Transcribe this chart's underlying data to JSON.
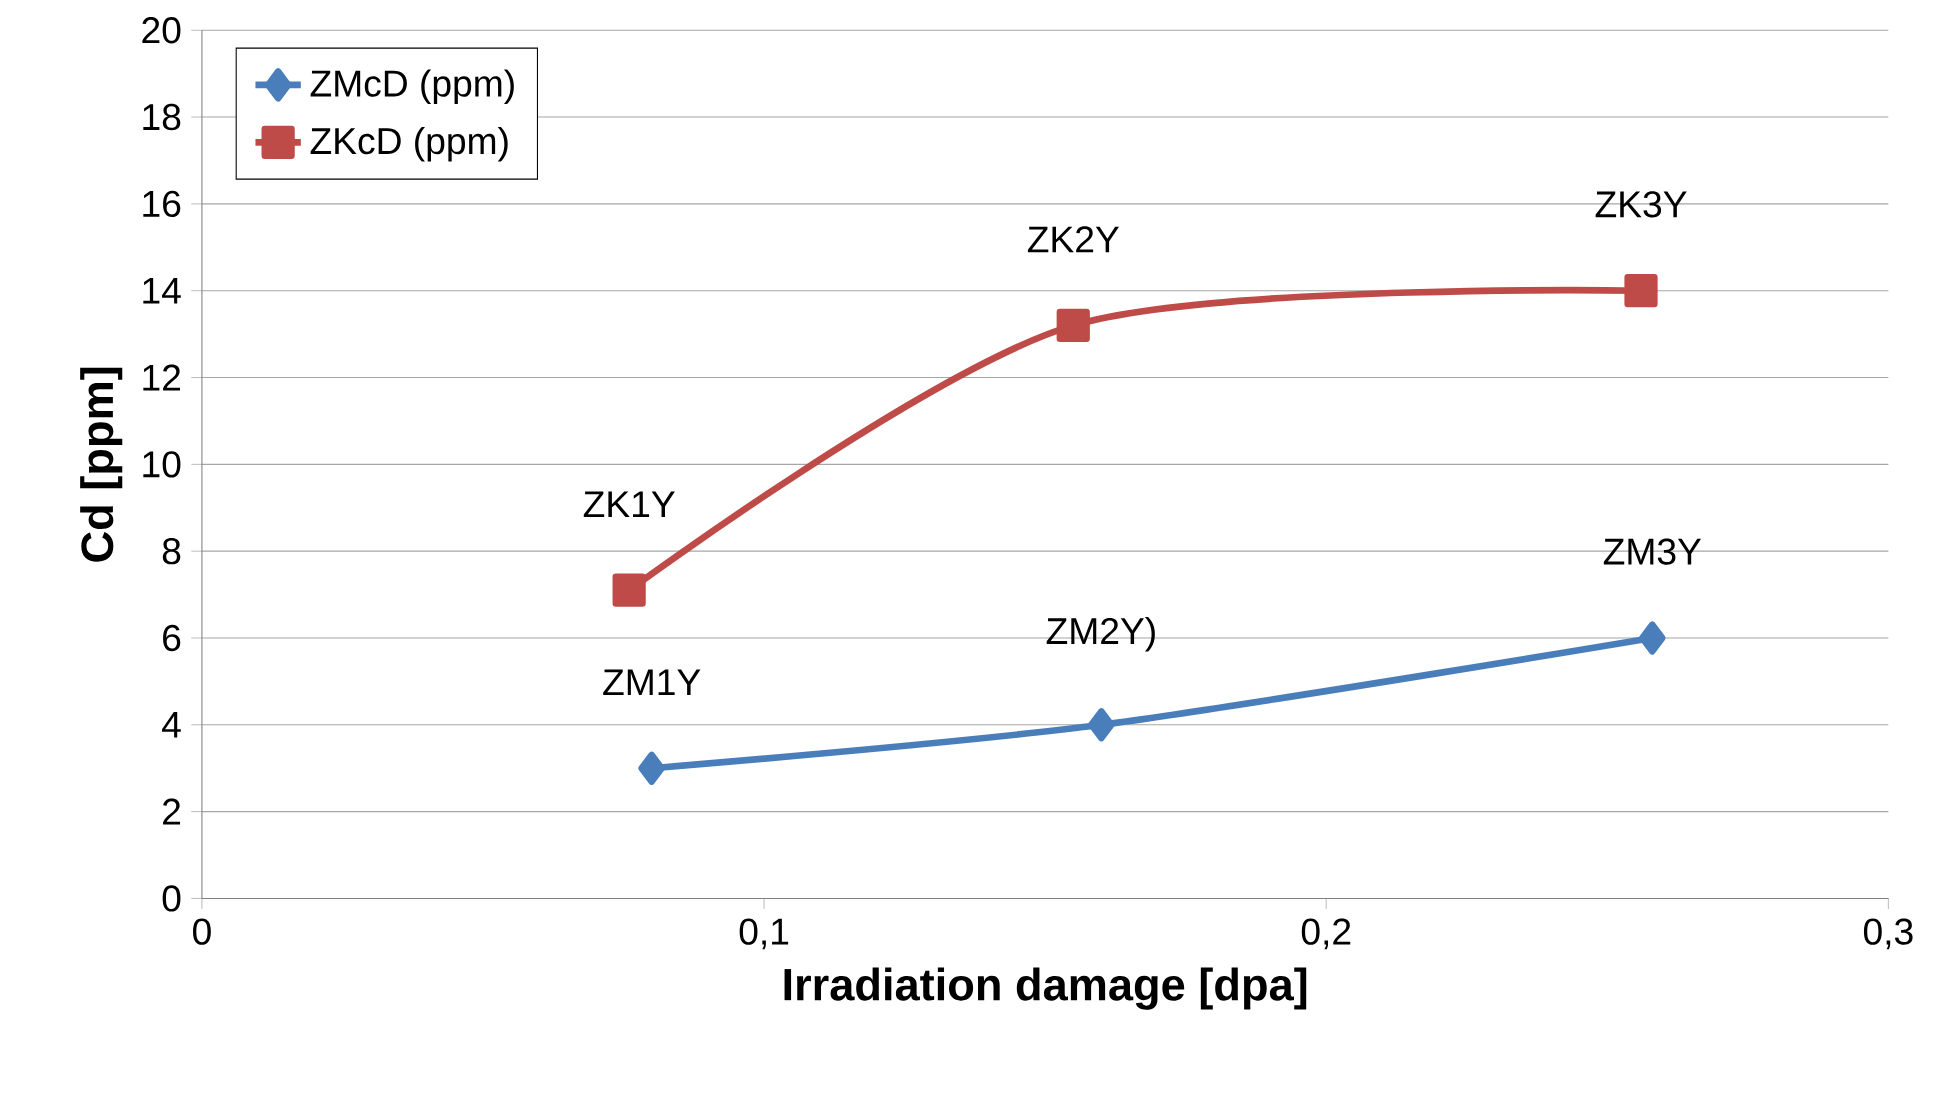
{
  "chart_data": {
    "type": "line",
    "xlabel": "Irradiation damage [dpa]",
    "ylabel": "Cd [ppm]",
    "xlim": [
      0,
      0.3
    ],
    "xticks": [
      0,
      {
        "value": 0.1,
        "label": "0,1"
      },
      {
        "value": 0.2,
        "label": "0,2"
      },
      {
        "value": 0.3,
        "label": "0,3"
      }
    ],
    "ylim": [
      0,
      20
    ],
    "yticks": [
      0,
      2,
      4,
      6,
      8,
      10,
      12,
      14,
      16,
      18,
      20
    ],
    "grid": "y",
    "legend": "top left",
    "line_style": "solid",
    "series": [
      {
        "name": "ZMcD (ppm)",
        "color": "#4a7ebb",
        "marker": "diamond",
        "x": [
          0.08,
          0.16,
          0.258
        ],
        "values": [
          3,
          4,
          6
        ]
      },
      {
        "name": "ZKcD (ppm)",
        "color": "#be4b48",
        "marker": "square",
        "x": [
          0.076,
          0.155,
          0.256
        ],
        "values": [
          7.1,
          13.2,
          14
        ]
      }
    ],
    "annotations": [
      {
        "text": "ZK1Y",
        "x": 0.076,
        "y": 7.1
      },
      {
        "text": "ZK2Y",
        "x": 0.155,
        "y": 13.2
      },
      {
        "text": "ZK3Y",
        "x": 0.256,
        "y": 14
      },
      {
        "text": "ZM1Y",
        "x": 0.08,
        "y": 3
      },
      {
        "text": "ZM2Y)",
        "x": 0.16,
        "y": 4
      },
      {
        "text": "ZM3Y",
        "x": 0.258,
        "y": 6
      }
    ]
  }
}
